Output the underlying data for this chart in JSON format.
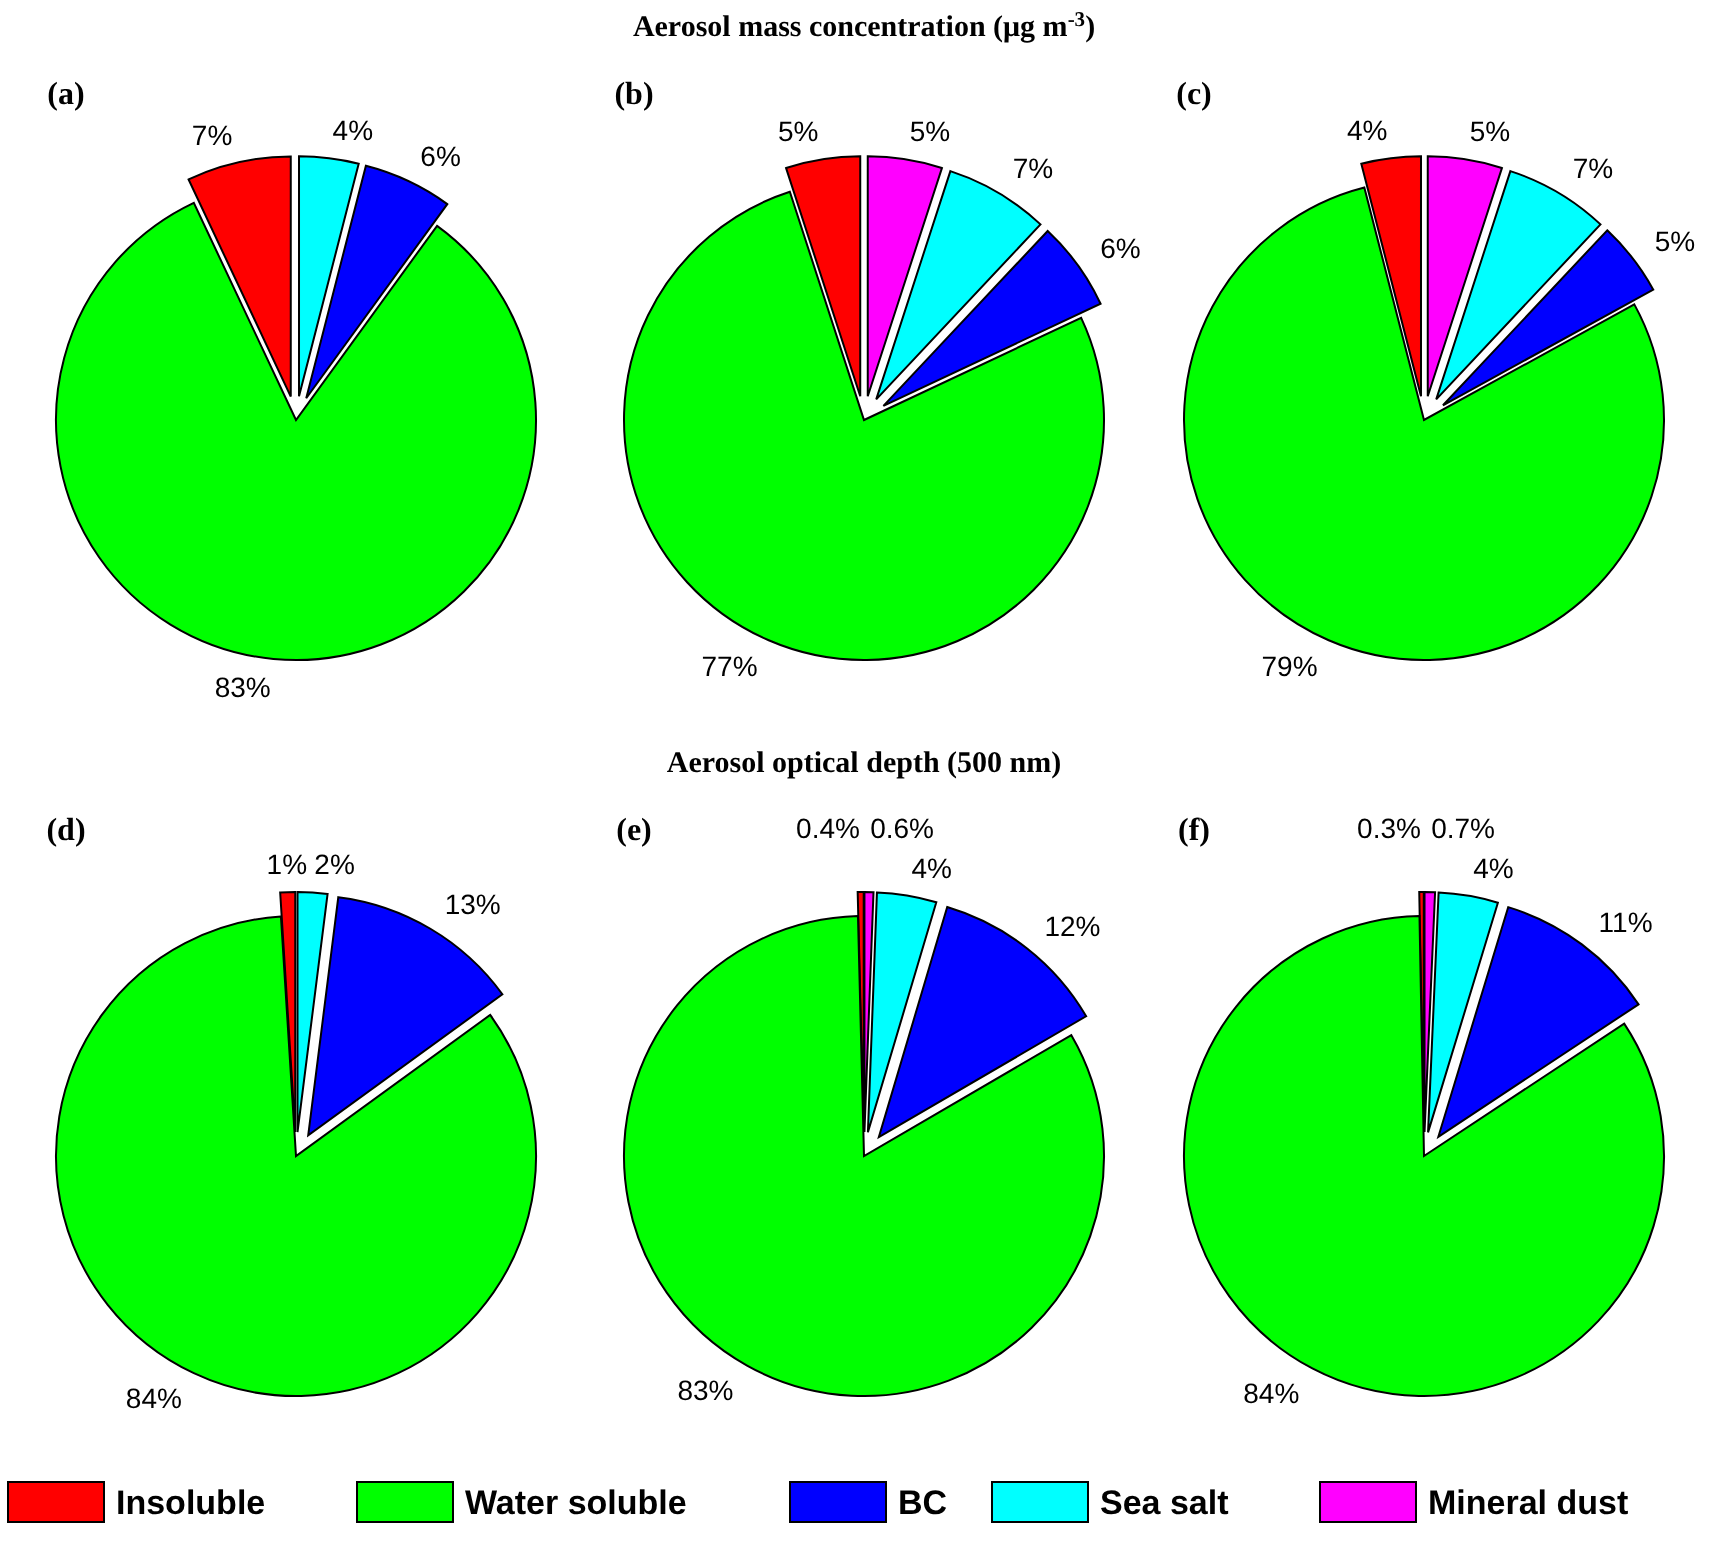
{
  "chart_data": [
    {
      "type": "pie",
      "subtitle": "(a)",
      "values": [
        7,
        83,
        6,
        4,
        null
      ],
      "value_labels": [
        "7%",
        "83%",
        "6%",
        "4%",
        null
      ],
      "colors": [
        "#ff0000",
        "#00ff00",
        "#0000ff",
        "#00ffff",
        "#ff00ff"
      ]
    },
    {
      "type": "pie",
      "title": "Aerosol mass concentration (μg m$^{-3}$)",
      "subtitle": "(b)",
      "values": [
        5,
        77,
        6,
        7,
        5
      ],
      "value_labels": [
        "5%",
        "77%",
        "6%",
        "7%",
        "5%"
      ],
      "colors": [
        "#ff0000",
        "#00ff00",
        "#0000ff",
        "#00ffff",
        "#ff00ff"
      ]
    },
    {
      "type": "pie",
      "subtitle": "(c)",
      "values": [
        4,
        79,
        5,
        7,
        5
      ],
      "value_labels": [
        "4%",
        "79%",
        "5%",
        "7%",
        "5%"
      ],
      "colors": [
        "#ff0000",
        "#00ff00",
        "#0000ff",
        "#00ffff",
        "#ff00ff"
      ]
    },
    {
      "type": "pie",
      "subtitle": "(d)",
      "values": [
        1,
        84,
        13,
        2,
        null
      ],
      "value_labels": [
        "1%",
        "84%",
        "13%",
        "2%",
        null
      ],
      "colors": [
        "#ff0000",
        "#00ff00",
        "#0000ff",
        "#00ffff",
        "#ff00ff"
      ]
    },
    {
      "type": "pie",
      "title": "Aerosol optical depth (500 nm)",
      "subtitle": "(e)",
      "categories": [
        "Insoluble",
        "Water soluble",
        "BC",
        "Sea salt",
        "Mineral dust"
      ],
      "values": [
        0.4,
        83,
        12,
        4,
        0.6
      ],
      "value_labels": [
        "0.4%",
        "83%",
        "12%",
        "4%",
        "0.6%"
      ],
      "colors": [
        "#ff0000",
        "#00ff00",
        "#0000ff",
        "#00ffff",
        "#ff00ff"
      ],
      "legend": "bottom"
    },
    {
      "type": "pie",
      "subtitle": "(f)",
      "values": [
        0.3,
        84,
        11,
        4,
        0.7
      ],
      "value_labels": [
        "0.3%",
        "84%",
        "11%",
        "4%",
        "0.7%"
      ],
      "colors": [
        "#ff0000",
        "#00ff00",
        "#0000ff",
        "#00ffff",
        "#ff00ff"
      ]
    }
  ]
}
